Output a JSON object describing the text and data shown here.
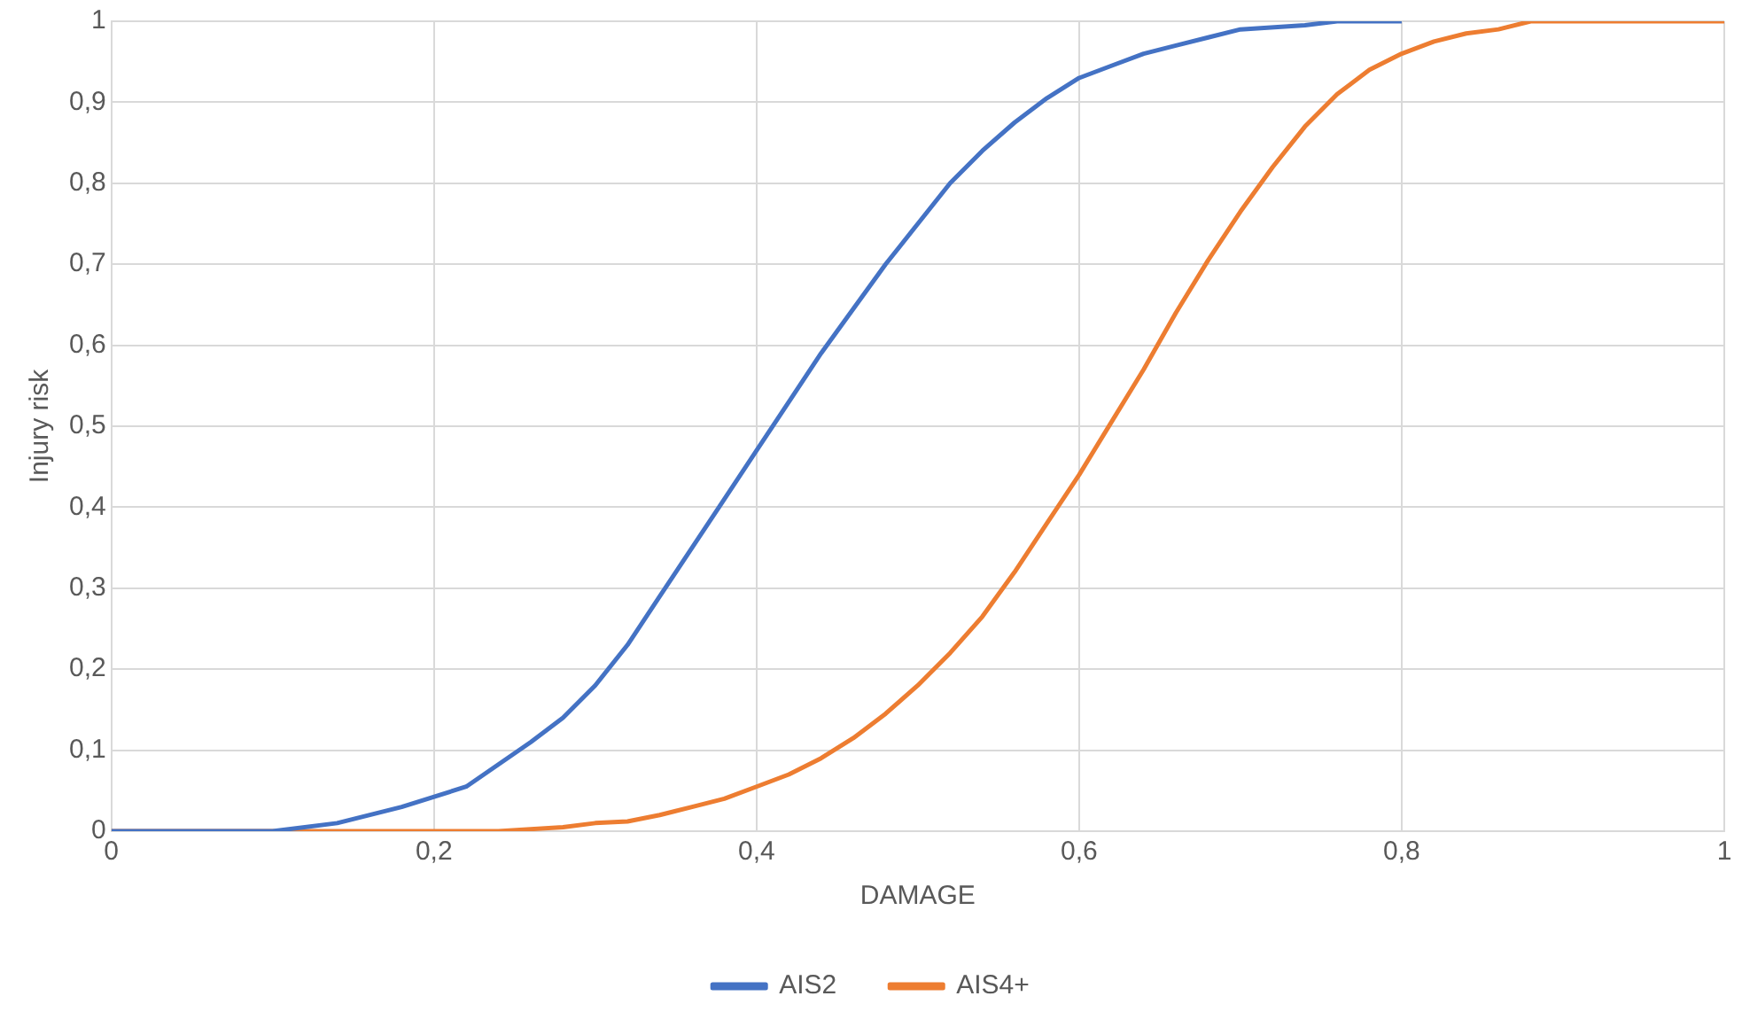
{
  "chart_data": {
    "type": "line",
    "xlabel": "DAMAGE",
    "ylabel": "Injury risk",
    "series": [
      {
        "name": "AIS2",
        "color": "#4472c4",
        "x": [
          0,
          0.1,
          0.14,
          0.18,
          0.22,
          0.26,
          0.28,
          0.3,
          0.32,
          0.34,
          0.36,
          0.38,
          0.4,
          0.42,
          0.44,
          0.46,
          0.48,
          0.5,
          0.52,
          0.54,
          0.56,
          0.58,
          0.6,
          0.62,
          0.64,
          0.66,
          0.68,
          0.7,
          0.74,
          0.76,
          0.8
        ],
        "values": [
          0,
          0,
          0.01,
          0.03,
          0.055,
          0.11,
          0.14,
          0.18,
          0.23,
          0.29,
          0.35,
          0.41,
          0.47,
          0.53,
          0.59,
          0.645,
          0.7,
          0.75,
          0.8,
          0.84,
          0.875,
          0.905,
          0.93,
          0.945,
          0.96,
          0.97,
          0.98,
          0.99,
          0.995,
          1,
          1
        ]
      },
      {
        "name": "AIS4+",
        "color": "#ed7d31",
        "x": [
          0,
          0.24,
          0.28,
          0.3,
          0.32,
          0.34,
          0.36,
          0.38,
          0.4,
          0.42,
          0.44,
          0.46,
          0.48,
          0.5,
          0.52,
          0.54,
          0.56,
          0.58,
          0.6,
          0.62,
          0.64,
          0.66,
          0.68,
          0.7,
          0.72,
          0.74,
          0.76,
          0.78,
          0.8,
          0.82,
          0.84,
          0.86,
          0.88,
          1
        ],
        "values": [
          0,
          0,
          0.005,
          0.01,
          0.012,
          0.02,
          0.03,
          0.04,
          0.055,
          0.07,
          0.09,
          0.115,
          0.145,
          0.18,
          0.22,
          0.265,
          0.32,
          0.38,
          0.44,
          0.505,
          0.57,
          0.64,
          0.705,
          0.765,
          0.82,
          0.87,
          0.91,
          0.94,
          0.96,
          0.975,
          0.985,
          0.99,
          1,
          1
        ]
      }
    ],
    "xlim": [
      0,
      1
    ],
    "xticks": [
      0,
      {
        "value": 0.2,
        "label": "0,2"
      },
      {
        "value": 0.4,
        "label": "0,4"
      },
      {
        "value": 0.6,
        "label": "0,6"
      },
      {
        "value": 0.8,
        "label": "0,8"
      },
      1
    ],
    "ylim": [
      0,
      1
    ],
    "yticks": [
      0,
      {
        "value": 0.1,
        "label": "0,1"
      },
      {
        "value": 0.2,
        "label": "0,2"
      },
      {
        "value": 0.3,
        "label": "0,3"
      },
      {
        "value": 0.4,
        "label": "0,4"
      },
      {
        "value": 0.5,
        "label": "0,5"
      },
      {
        "value": 0.6,
        "label": "0,6"
      },
      {
        "value": 0.7,
        "label": "0,7"
      },
      {
        "value": 0.8,
        "label": "0,8"
      },
      {
        "value": 0.9,
        "label": "0,9"
      },
      1
    ],
    "grid": true,
    "legend": "bottom",
    "marker": "none",
    "line_style": "solid"
  }
}
